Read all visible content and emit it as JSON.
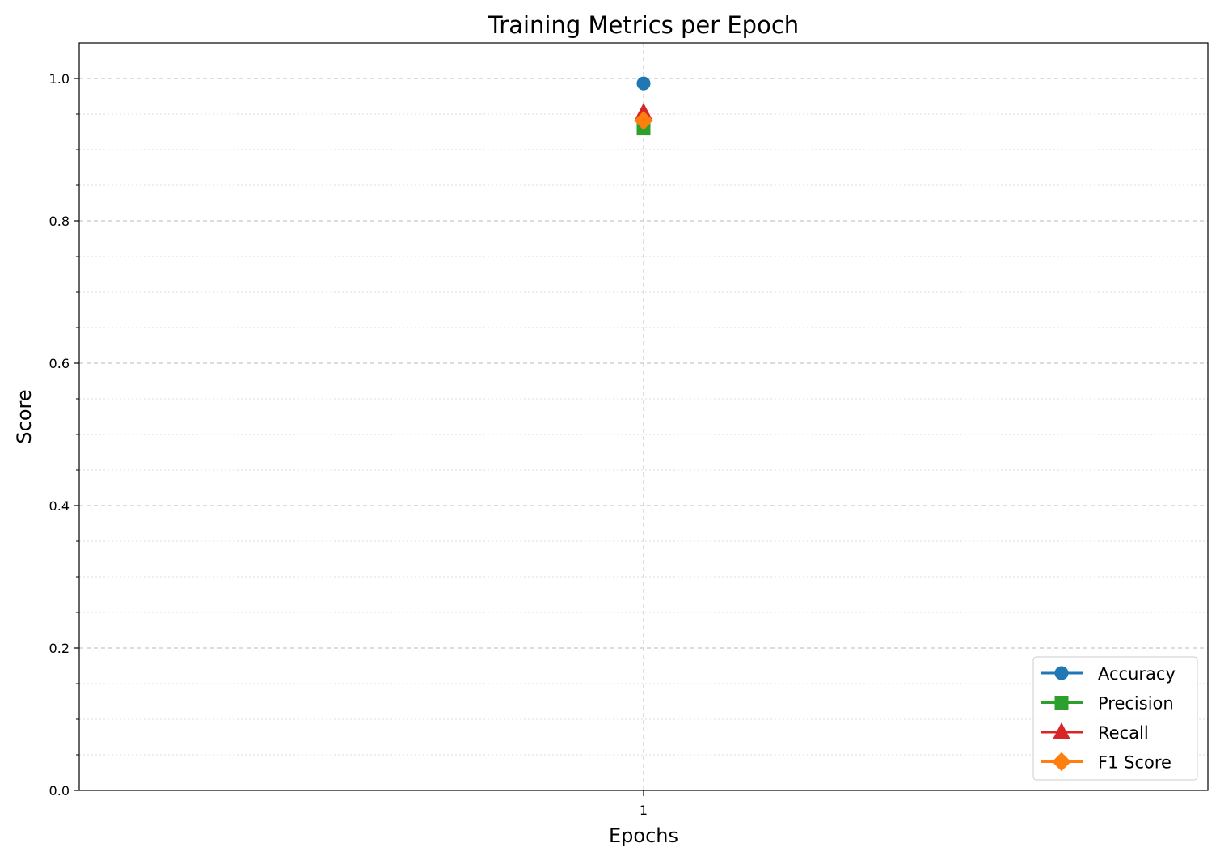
{
  "chart_data": {
    "type": "line",
    "title": "Training Metrics per Epoch",
    "xlabel": "Epochs",
    "ylabel": "Score",
    "x": [
      1
    ],
    "x_ticks": [
      "1"
    ],
    "ylim": [
      0,
      1.05
    ],
    "y_ticks": [
      "0.0",
      "0.2",
      "0.4",
      "0.6",
      "0.8",
      "1.0"
    ],
    "grid": true,
    "legend_position": "lower-right",
    "series": [
      {
        "name": "Accuracy",
        "values": [
          0.993
        ],
        "color": "#1f77b4",
        "marker": "circle"
      },
      {
        "name": "Precision",
        "values": [
          0.93
        ],
        "color": "#2ca02c",
        "marker": "square"
      },
      {
        "name": "Recall",
        "values": [
          0.952
        ],
        "color": "#d62728",
        "marker": "triangle"
      },
      {
        "name": "F1 Score",
        "values": [
          0.941
        ],
        "color": "#ff7f0e",
        "marker": "diamond"
      }
    ]
  }
}
